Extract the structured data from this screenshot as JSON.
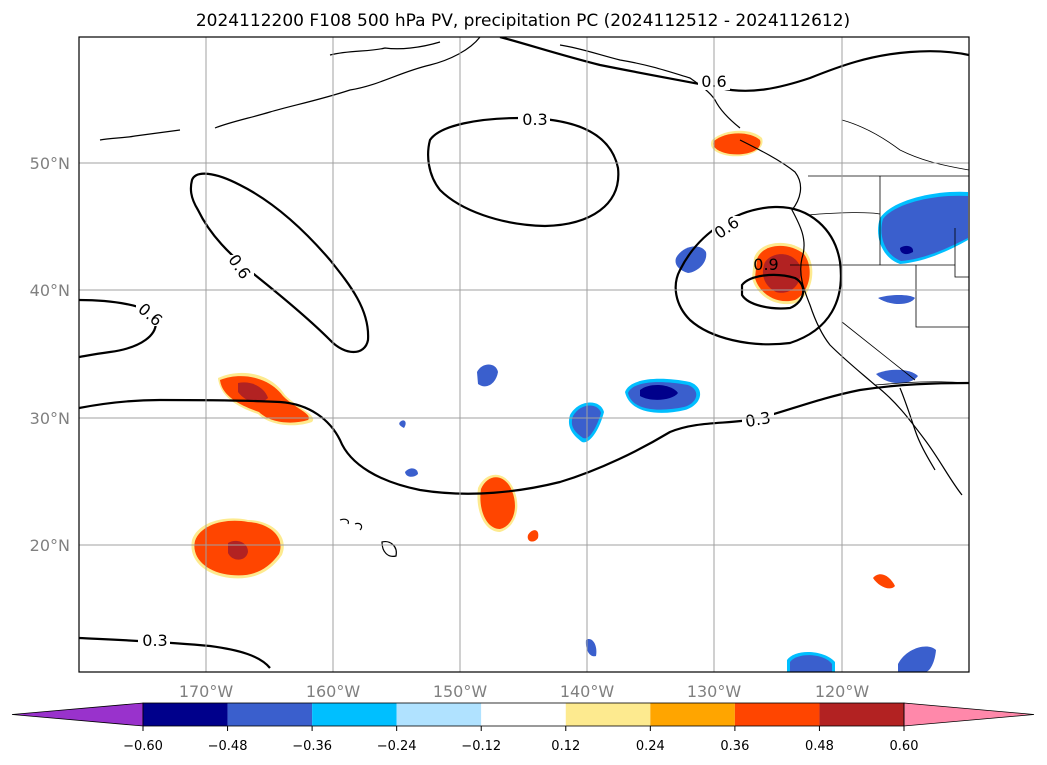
{
  "map": {
    "title": "2024112200 F108 500 hPa PV, precipitation PC (2024112512 - 2024112612)",
    "lon_range": [
      -180,
      -110
    ],
    "lat_range": [
      10,
      60
    ],
    "lon_ticks": [
      "170°W",
      "160°W",
      "150°W",
      "140°W",
      "130°W",
      "120°W"
    ],
    "lat_ticks": [
      "50°N",
      "40°N",
      "30°N",
      "20°N"
    ],
    "grid": true,
    "contour_labels": [
      "0.3",
      "0.6",
      "0.6",
      "0.6",
      "0.6",
      "0.9",
      "0.3",
      "0.3"
    ]
  },
  "colorbar": {
    "ticks": [
      "−0.60",
      "−0.48",
      "−0.36",
      "−0.24",
      "−0.12",
      "0.12",
      "0.24",
      "0.36",
      "0.48",
      "0.60"
    ],
    "colors": [
      "#9932cc",
      "#00008b",
      "#3a5fcd",
      "#00bfff",
      "#b0e2ff",
      "#ffffff",
      "#fdea8f",
      "#ffa500",
      "#ff4500",
      "#b22222",
      "#ff88aa"
    ]
  },
  "colors": {
    "positive_strong": "#ff4500",
    "positive_core": "#b22222",
    "negative_strong": "#3a5fcd",
    "negative_core": "#00008b",
    "negative_edge": "#00bfff",
    "positive_edge": "#fdea8f"
  }
}
